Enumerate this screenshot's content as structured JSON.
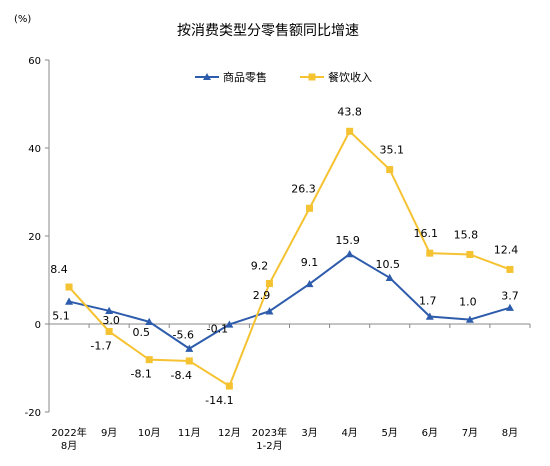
{
  "chart_data": {
    "type": "line",
    "title": "按消费类型分零售额同比增速",
    "unit_label": "(%)",
    "categories": [
      [
        "2022年",
        "8月"
      ],
      [
        "9月"
      ],
      [
        "10月"
      ],
      [
        "11月"
      ],
      [
        "12月"
      ],
      [
        "2023年",
        "1-2月"
      ],
      [
        "3月"
      ],
      [
        "4月"
      ],
      [
        "5月"
      ],
      [
        "6月"
      ],
      [
        "7月"
      ],
      [
        "8月"
      ]
    ],
    "ylim": [
      -20,
      60
    ],
    "yticks": [
      -20,
      0,
      20,
      40,
      60
    ],
    "grid": false,
    "legend_position": "top-center",
    "series": [
      {
        "name": "商品零售",
        "color": "#2e5cac",
        "marker": "triangle",
        "values": [
          5.1,
          3.0,
          0.5,
          -5.6,
          -0.1,
          2.9,
          9.1,
          15.9,
          10.5,
          1.7,
          1.0,
          3.7
        ],
        "labels": [
          "5.1",
          "3.0",
          "0.5",
          "-5.6",
          "-0.1",
          "2.9",
          "9.1",
          "15.9",
          "10.5",
          "1.7",
          "1.0",
          "3.7"
        ]
      },
      {
        "name": "餐饮收入",
        "color": "#f5c232",
        "marker": "square",
        "values": [
          8.4,
          -1.7,
          -8.1,
          -8.4,
          -14.1,
          9.2,
          26.3,
          43.8,
          35.1,
          16.1,
          15.8,
          12.4
        ],
        "labels": [
          "8.4",
          "-1.7",
          "-8.1",
          "-8.4",
          "-14.1",
          "9.2",
          "26.3",
          "43.8",
          "35.1",
          "16.1",
          "15.8",
          "12.4"
        ]
      }
    ]
  }
}
